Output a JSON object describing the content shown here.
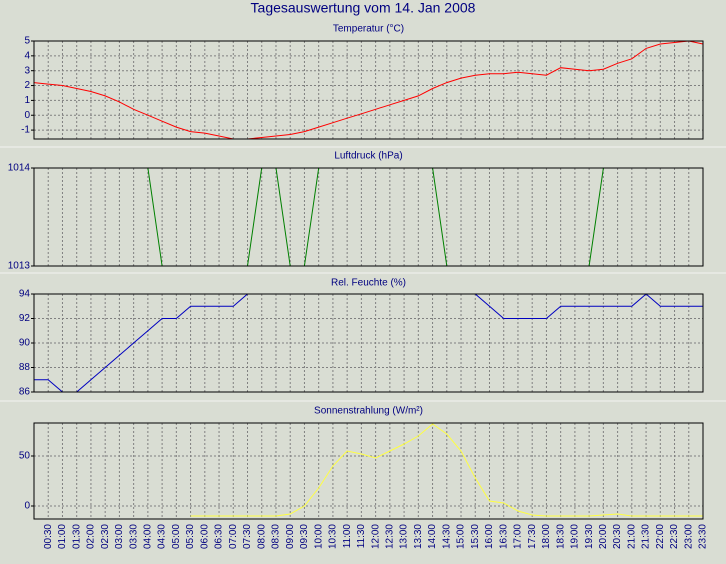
{
  "title": "Tagesauswertung vom 14. Jan 2008",
  "chart_data": [
    {
      "type": "line",
      "title": "Temperatur (°C)",
      "color": "#ff0000",
      "grid": true,
      "ylim": [
        -1.6,
        5
      ],
      "yticks": [
        -1,
        0,
        1,
        2,
        3,
        4,
        5
      ],
      "values": [
        2.2,
        2.1,
        2.0,
        1.8,
        1.6,
        1.3,
        0.9,
        0.4,
        0.0,
        -0.4,
        -0.8,
        -1.1,
        -1.2,
        -1.4,
        -1.6,
        -1.6,
        -1.5,
        -1.4,
        -1.3,
        -1.1,
        -0.8,
        -0.5,
        -0.2,
        0.1,
        0.4,
        0.7,
        1.0,
        1.3,
        1.8,
        2.2,
        2.5,
        2.7,
        2.8,
        2.8,
        2.9,
        2.8,
        2.7,
        3.2,
        3.1,
        3.0,
        3.1,
        3.5,
        3.8,
        4.5,
        4.8,
        4.9,
        5.0,
        4.8
      ]
    },
    {
      "type": "line",
      "title": "Luftdruck (hPa)",
      "color": "#008000",
      "grid": true,
      "ylim": [
        1013,
        1014
      ],
      "yticks": [
        1013,
        1014
      ],
      "values": [
        1014,
        1014,
        1014,
        1014,
        1014,
        1014,
        1014,
        1014,
        1014,
        1013,
        1013,
        1013,
        1013,
        1013,
        1013,
        1013,
        1014,
        1014,
        1013,
        1013,
        1014,
        1014,
        1014,
        1014,
        1014,
        1014,
        1014,
        1014,
        1014,
        1013,
        1013,
        1013,
        1013,
        1013,
        1013,
        1013,
        1013,
        1013,
        1013,
        1013,
        1014,
        1014,
        1014,
        1014,
        1014,
        1014,
        1014,
        1014
      ]
    },
    {
      "type": "line",
      "title": "Rel. Feuchte (%)",
      "color": "#0000c0",
      "grid": true,
      "ylim": [
        86,
        94
      ],
      "yticks": [
        86,
        88,
        90,
        92,
        94
      ],
      "values": [
        87,
        87,
        86,
        86,
        87,
        88,
        89,
        90,
        91,
        92,
        92,
        93,
        93,
        93,
        93,
        94,
        94,
        94,
        94,
        94,
        94,
        94,
        94,
        94,
        94,
        94,
        94,
        94,
        94,
        94,
        94,
        94,
        93,
        92,
        92,
        92,
        92,
        93,
        93,
        93,
        93,
        93,
        93,
        94,
        93,
        93,
        93,
        93
      ]
    },
    {
      "type": "line",
      "title": "Sonnenstrahlung (W/m²)",
      "color": "#ffff40",
      "grid": true,
      "ylim": [
        -13,
        83
      ],
      "yticks": [
        0,
        50
      ],
      "values": [
        null,
        null,
        null,
        null,
        null,
        null,
        null,
        null,
        null,
        null,
        null,
        -10,
        -10,
        -10,
        -10,
        -10,
        -10,
        -10,
        -8,
        0,
        18,
        40,
        55,
        52,
        48,
        55,
        62,
        70,
        82,
        72,
        55,
        28,
        5,
        3,
        -5,
        -9,
        -10,
        -10,
        -10,
        -10,
        -9,
        -8,
        -10,
        -10,
        -10,
        -10,
        -10,
        -10
      ],
      "categories": [
        null,
        "00:30",
        "01:00",
        "01:30",
        "02:00",
        "02:30",
        "03:00",
        "03:30",
        "04:00",
        "04:30",
        "05:00",
        "05:30",
        "06:00",
        "06:30",
        "07:00",
        "07:30",
        "08:00",
        "08:30",
        "09:00",
        "09:30",
        "10:00",
        "10:30",
        "11:00",
        "11:30",
        "12:00",
        "12:30",
        "13:00",
        "13:30",
        "14:00",
        "14:30",
        "15:00",
        "15:30",
        "16:00",
        "16:30",
        "17:00",
        "17:30",
        "18:00",
        "18:30",
        "19:00",
        "19:30",
        "20:00",
        "20:30",
        "21:00",
        "21:30",
        "22:00",
        "22:30",
        "23:00",
        "23:30"
      ]
    }
  ]
}
